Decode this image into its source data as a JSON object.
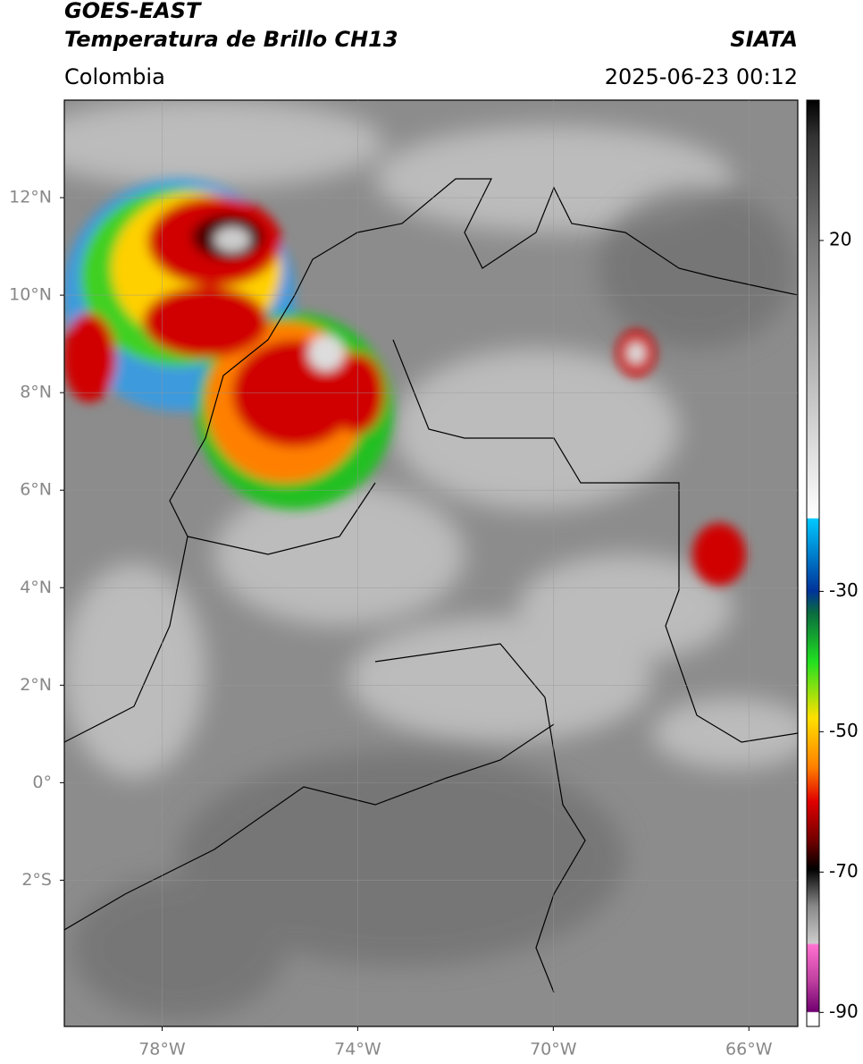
{
  "header": {
    "title": "GOES-EAST",
    "subtitle": "Temperatura de Brillo CH13",
    "source": "SIATA",
    "region": "Colombia",
    "datetime": "2025-06-23 00:12"
  },
  "map": {
    "lonlim": [
      -80,
      -65
    ],
    "latlim": [
      -5,
      14
    ],
    "xticks": [
      {
        "value": -78,
        "label": "78°W"
      },
      {
        "value": -74,
        "label": "74°W"
      },
      {
        "value": -70,
        "label": "70°W"
      },
      {
        "value": -66,
        "label": "66°W"
      }
    ],
    "yticks": [
      {
        "value": 12,
        "label": "12°N"
      },
      {
        "value": 10,
        "label": "10°N"
      },
      {
        "value": 8,
        "label": "8°N"
      },
      {
        "value": 6,
        "label": "6°N"
      },
      {
        "value": 4,
        "label": "4°N"
      },
      {
        "value": 2,
        "label": "2°N"
      },
      {
        "value": 0,
        "label": "0°"
      },
      {
        "value": -2,
        "label": "2°S"
      }
    ],
    "grid": true
  },
  "colorbar": {
    "lim": [
      -92,
      40
    ],
    "ticks": [
      20,
      -30,
      -50,
      -70,
      -90
    ]
  }
}
